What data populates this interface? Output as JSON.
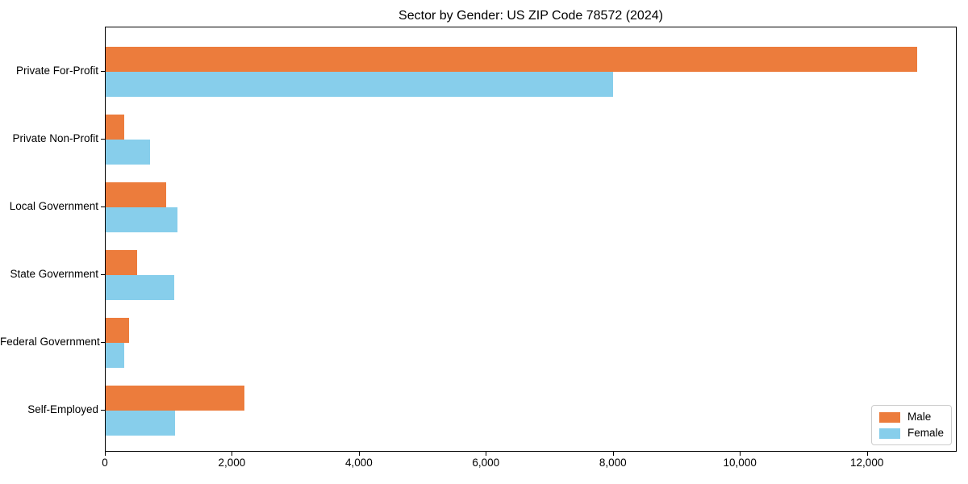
{
  "page": {
    "background": "#ffffff"
  },
  "chart_data": {
    "type": "bar",
    "orientation": "horizontal",
    "title": "Sector by Gender: US ZIP Code 78572 (2024)",
    "categories": [
      "Private For-Profit",
      "Private Non-Profit",
      "Local Government",
      "State Government",
      "Federal Government",
      "Self-Employed"
    ],
    "series": [
      {
        "name": "Male",
        "color": "#EC7C3C",
        "values": [
          12775,
          290,
          950,
          500,
          370,
          2190
        ]
      },
      {
        "name": "Female",
        "color": "#87CEEB",
        "values": [
          7990,
          700,
          1130,
          1080,
          290,
          1095
        ]
      }
    ],
    "xlabel": "",
    "ylabel": "",
    "xlim": [
      0,
      13414
    ],
    "x_ticks": [
      0,
      2000,
      4000,
      6000,
      8000,
      10000,
      12000
    ],
    "x_tick_labels": [
      "0",
      "2,000",
      "4,000",
      "6,000",
      "8,000",
      "10,000",
      "12,000"
    ],
    "grid": false,
    "background": "#ffffff",
    "legend": {
      "position": "lower right",
      "entries": [
        "Male",
        "Female"
      ]
    }
  }
}
